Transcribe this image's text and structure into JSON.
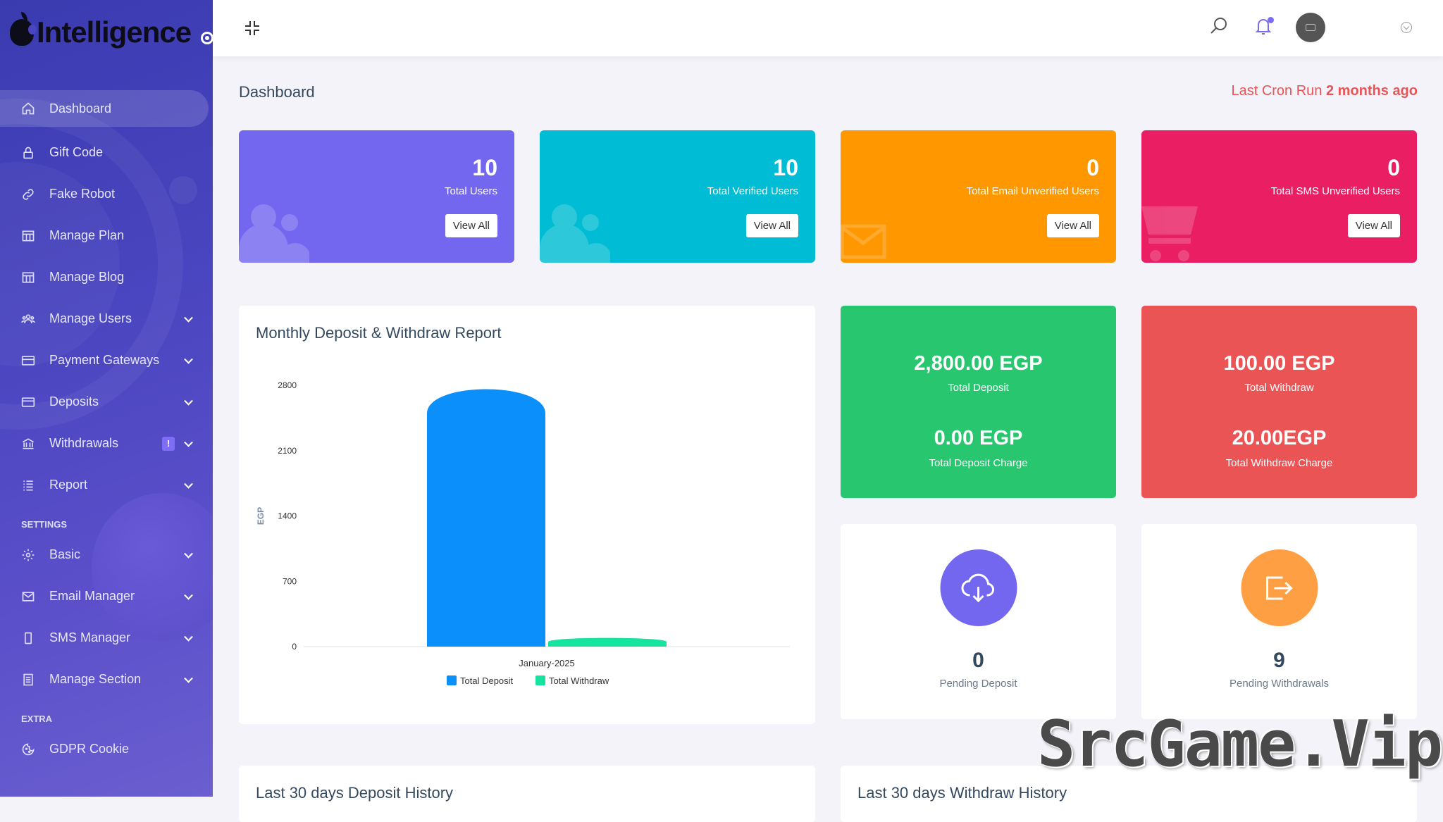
{
  "brand": {
    "logo_text": "Intelligence"
  },
  "sidebar": {
    "items": [
      {
        "label": "Dashboard",
        "icon": "home-icon"
      },
      {
        "label": "Gift Code",
        "icon": "lock-icon"
      },
      {
        "label": "Fake Robot",
        "icon": "link-icon"
      },
      {
        "label": "Manage Plan",
        "icon": "grid-icon"
      },
      {
        "label": "Manage Blog",
        "icon": "grid-icon"
      },
      {
        "label": "Manage Users",
        "icon": "users-icon"
      },
      {
        "label": "Payment Gateways",
        "icon": "card-icon"
      },
      {
        "label": "Deposits",
        "icon": "card-icon"
      },
      {
        "label": "Withdrawals",
        "icon": "bank-icon",
        "badge": "!"
      },
      {
        "label": "Report",
        "icon": "list-icon"
      }
    ],
    "settings_heading": "SETTINGS",
    "settings_items": [
      {
        "label": "Basic",
        "icon": "gear-icon"
      },
      {
        "label": "Email Manager",
        "icon": "mail-icon"
      },
      {
        "label": "SMS Manager",
        "icon": "phone-icon"
      },
      {
        "label": "Manage Section",
        "icon": "section-icon"
      }
    ],
    "extra_heading": "EXTRA",
    "extra_items": [
      {
        "label": "GDPR Cookie",
        "icon": "cookie-icon"
      }
    ]
  },
  "header": {
    "page_title": "Dashboard",
    "cron_label": "Last Cron Run",
    "cron_value": "2 months ago"
  },
  "stats": [
    {
      "value": "10",
      "label": "Total Users",
      "button": "View All",
      "color": "#7367f0"
    },
    {
      "value": "10",
      "label": "Total Verified Users",
      "button": "View All",
      "color": "#00bcd4"
    },
    {
      "value": "0",
      "label": "Total Email Unverified Users",
      "button": "View All",
      "color": "#ff9800"
    },
    {
      "value": "0",
      "label": "Total SMS Unverified Users",
      "button": "View All",
      "color": "#e91e63"
    }
  ],
  "deposit_summary": {
    "total_deposit": "2,800.00 EGP",
    "total_deposit_label": "Total Deposit",
    "deposit_charge": "0.00 EGP",
    "deposit_charge_label": "Total Deposit Charge",
    "color": "#28c76f"
  },
  "withdraw_summary": {
    "total_withdraw": "100.00 EGP",
    "total_withdraw_label": "Total Withdraw",
    "withdraw_charge": "20.00EGP",
    "withdraw_charge_label": "Total Withdraw Charge",
    "color": "#ea5455"
  },
  "pending": [
    {
      "value": "0",
      "label": "Pending Deposit",
      "color": "#7367f0",
      "icon": "cloud-download-icon"
    },
    {
      "value": "9",
      "label": "Pending Withdrawals",
      "color": "#ff9f43",
      "icon": "exit-icon"
    }
  ],
  "chart_card": {
    "title": "Monthly Deposit & Withdraw Report"
  },
  "chart_data": {
    "type": "bar",
    "categories": [
      "January-2025"
    ],
    "series": [
      {
        "name": "Total Deposit",
        "values": [
          2800
        ],
        "color": "#0a8ffb"
      },
      {
        "name": "Total Withdraw",
        "values": [
          100
        ],
        "color": "#17e3a0"
      }
    ],
    "ylabel": "EGP",
    "yticks": [
      0,
      700,
      1400,
      2100,
      2800
    ],
    "ylim": [
      0,
      2800
    ],
    "legend": "bottom"
  },
  "history": {
    "deposit_title": "Last 30 days Deposit History",
    "withdraw_title": "Last 30 days Withdraw History"
  },
  "watermark": "SrcGame.Vip"
}
